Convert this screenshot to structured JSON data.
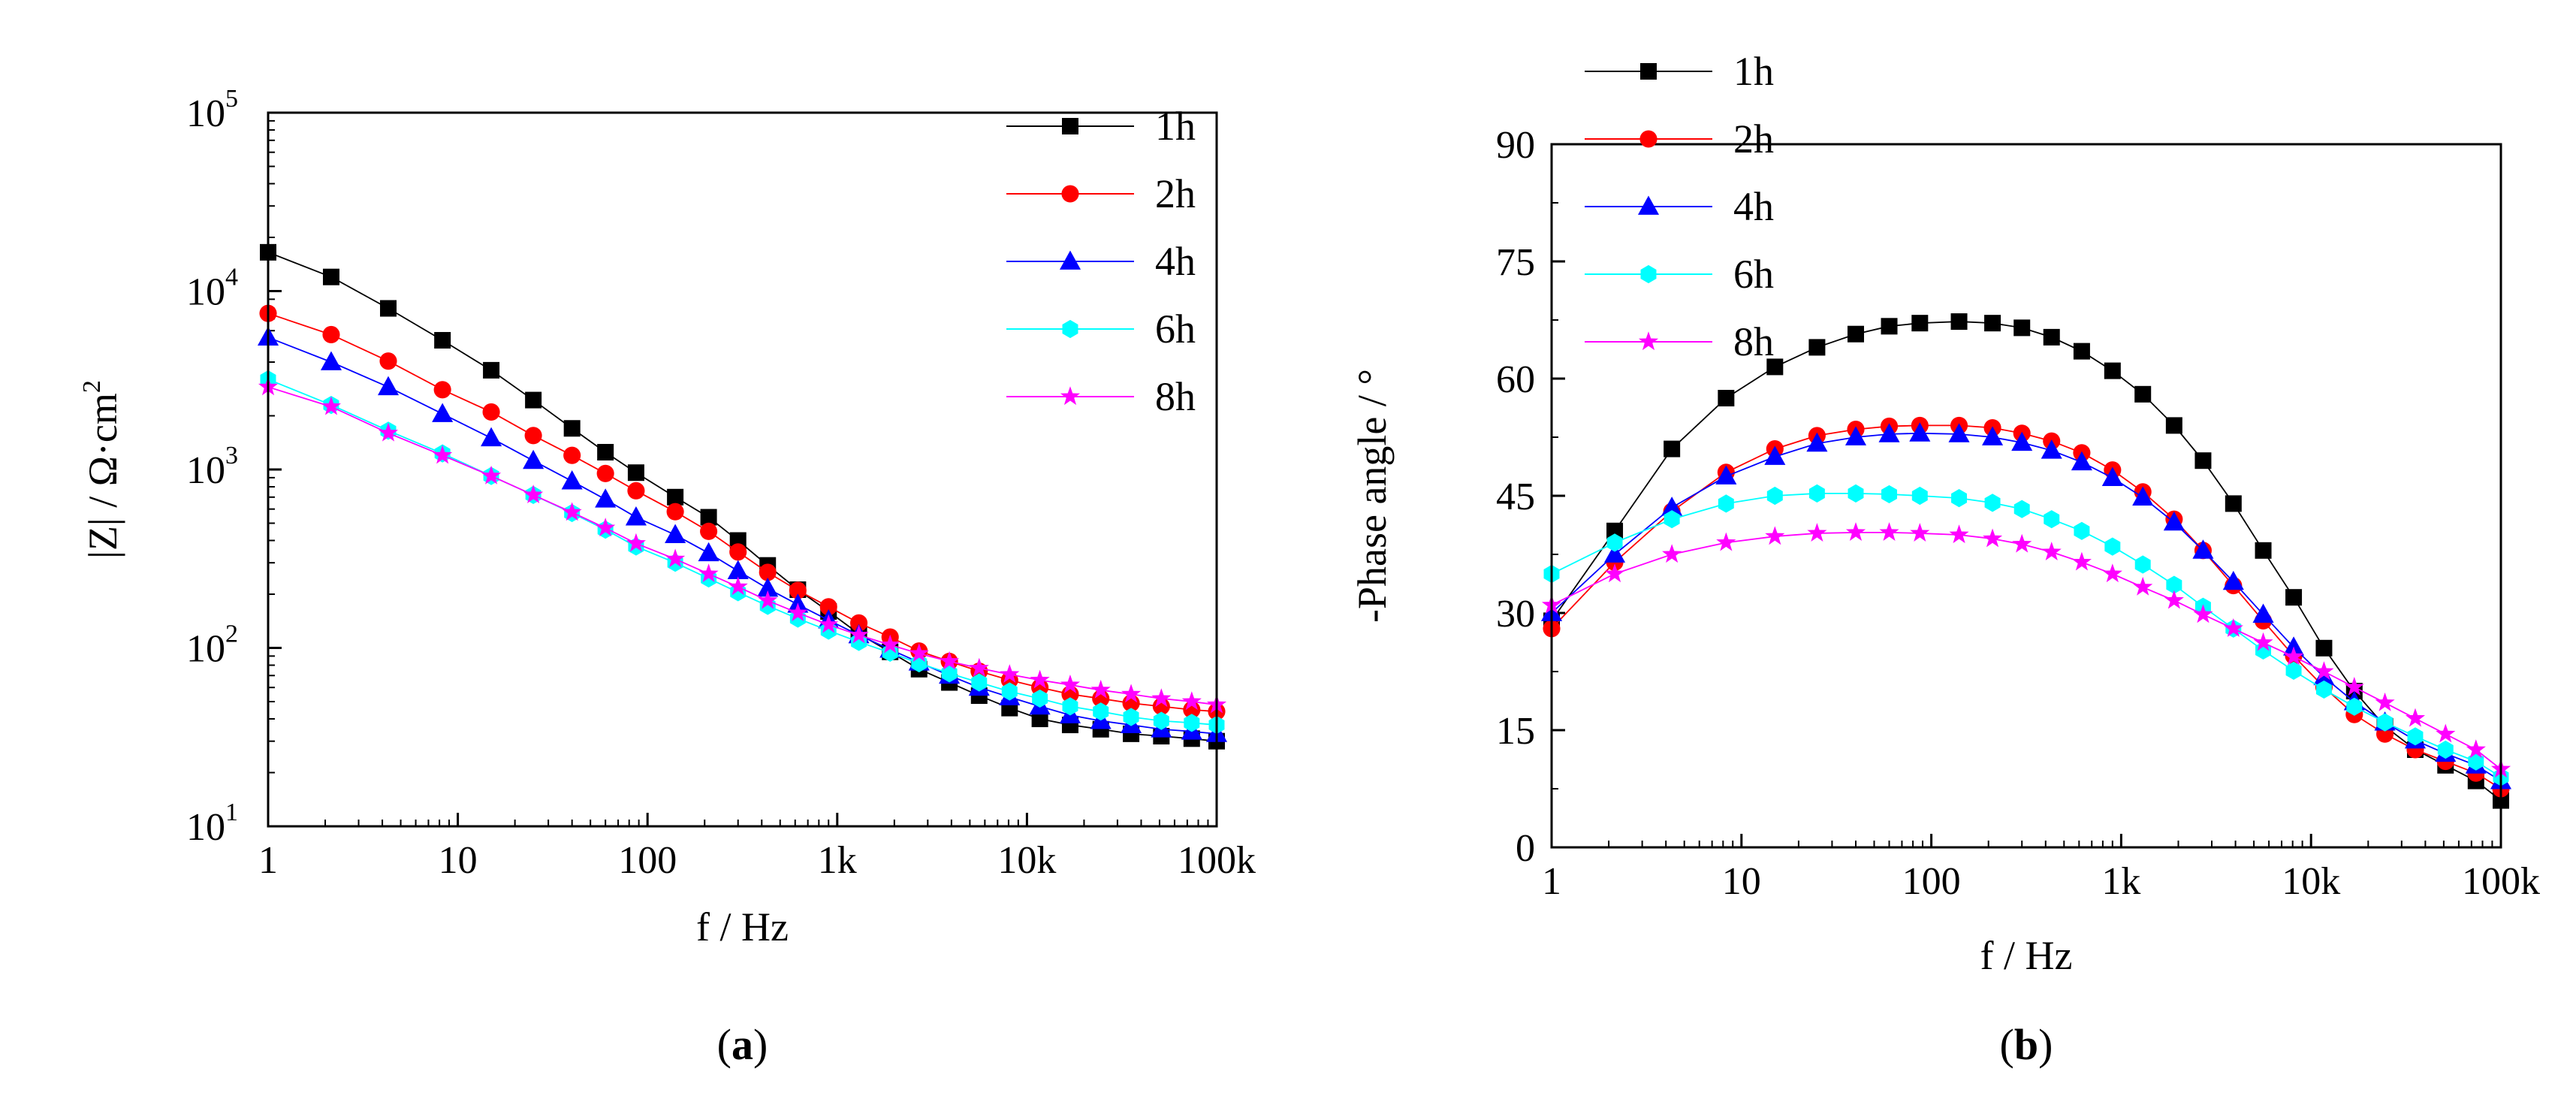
{
  "chart_data": [
    {
      "type": "line",
      "panel_label": "a",
      "title": "",
      "xlabel": "f / Hz",
      "ylabel": "|Z| / Ω·cm",
      "ylabel_sup": "2",
      "xscale": "log",
      "yscale": "log",
      "xlim": [
        1,
        100000
      ],
      "ylim": [
        10,
        100000
      ],
      "x_ticks": [
        {
          "v": 1,
          "label": "1"
        },
        {
          "v": 10,
          "label": "10"
        },
        {
          "v": 100,
          "label": "100"
        },
        {
          "v": 1000,
          "label": "1k"
        },
        {
          "v": 10000,
          "label": "10k"
        },
        {
          "v": 100000,
          "label": "100k"
        }
      ],
      "y_ticks": [
        {
          "v": 10,
          "base": "10",
          "exp": "1"
        },
        {
          "v": 100,
          "base": "10",
          "exp": "2"
        },
        {
          "v": 1000,
          "base": "10",
          "exp": "3"
        },
        {
          "v": 10000,
          "base": "10",
          "exp": "4"
        },
        {
          "v": 100000,
          "base": "10",
          "exp": "5"
        }
      ],
      "legend_position": "top-right",
      "x": [
        1,
        2.15,
        4.3,
        8.3,
        15,
        25,
        40,
        60,
        87,
        140,
        210,
        300,
        430,
        620,
        900,
        1300,
        1900,
        2700,
        3900,
        5600,
        8100,
        11700,
        16900,
        24500,
        35400,
        51100,
        73900,
        100000
      ],
      "series": [
        {
          "name": "1h",
          "color": "#000000",
          "marker": "square",
          "values": [
            16500,
            12000,
            8000,
            5300,
            3600,
            2450,
            1700,
            1250,
            960,
            700,
            540,
            400,
            290,
            212,
            160,
            120,
            95,
            76,
            64,
            54,
            46,
            40,
            37,
            35,
            33,
            32,
            31,
            30
          ]
        },
        {
          "name": "2h",
          "color": "#ff0000",
          "marker": "circle",
          "values": [
            7500,
            5700,
            4050,
            2800,
            2100,
            1550,
            1200,
            950,
            760,
            580,
            450,
            345,
            265,
            210,
            170,
            138,
            115,
            96,
            84,
            74,
            66,
            60,
            55,
            52,
            49,
            47,
            45,
            44
          ]
        },
        {
          "name": "4h",
          "color": "#0000ff",
          "marker": "triangle",
          "values": [
            5500,
            4000,
            2900,
            2050,
            1500,
            1120,
            860,
            680,
            540,
            430,
            340,
            270,
            215,
            175,
            143,
            118,
            98,
            83,
            70,
            60,
            53,
            47,
            42,
            39,
            37,
            35,
            34,
            33
          ]
        },
        {
          "name": "6h",
          "color": "#00ffff",
          "marker": "hexagon",
          "values": [
            3200,
            2300,
            1650,
            1230,
            920,
            720,
            570,
            460,
            370,
            300,
            245,
            205,
            172,
            146,
            125,
            108,
            94,
            82,
            72,
            64,
            57,
            52,
            47,
            44,
            41,
            39,
            38,
            37
          ]
        },
        {
          "name": "8h",
          "color": "#ff00ff",
          "marker": "star",
          "values": [
            2900,
            2250,
            1600,
            1200,
            920,
            720,
            575,
            470,
            385,
            315,
            260,
            220,
            184,
            157,
            135,
            118,
            104,
            93,
            84,
            77,
            71,
            66,
            62,
            58,
            55,
            52,
            50,
            48
          ]
        }
      ]
    },
    {
      "type": "line",
      "panel_label": "b",
      "title": "",
      "xlabel": "f / Hz",
      "ylabel": "-Phase angle / °",
      "xscale": "log",
      "yscale": "linear",
      "xlim": [
        1,
        100000
      ],
      "ylim": [
        0,
        90
      ],
      "x_ticks": [
        {
          "v": 1,
          "label": "1"
        },
        {
          "v": 10,
          "label": "10"
        },
        {
          "v": 100,
          "label": "100"
        },
        {
          "v": 1000,
          "label": "1k"
        },
        {
          "v": 10000,
          "label": "10k"
        },
        {
          "v": 100000,
          "label": "100k"
        }
      ],
      "y_ticks": [
        {
          "v": 0,
          "label": "0"
        },
        {
          "v": 15,
          "label": "15"
        },
        {
          "v": 30,
          "label": "30"
        },
        {
          "v": 45,
          "label": "45"
        },
        {
          "v": 60,
          "label": "60"
        },
        {
          "v": 75,
          "label": "75"
        },
        {
          "v": 90,
          "label": "90"
        }
      ],
      "legend_position": "top-left",
      "x": [
        1,
        2.15,
        4.3,
        8.3,
        15,
        25,
        40,
        60,
        87,
        140,
        210,
        300,
        430,
        620,
        900,
        1300,
        1900,
        2700,
        3900,
        5600,
        8100,
        11700,
        16900,
        24500,
        35400,
        51100,
        73900,
        100000
      ],
      "series": [
        {
          "name": "1h",
          "color": "#000000",
          "marker": "square",
          "values": [
            29,
            40.5,
            51,
            57.5,
            61.5,
            64,
            65.7,
            66.7,
            67.1,
            67.3,
            67.1,
            66.5,
            65.3,
            63.5,
            61,
            58,
            54,
            49.5,
            44,
            38,
            32,
            25.5,
            20,
            15.5,
            12.5,
            10.5,
            8.5,
            6
          ]
        },
        {
          "name": "2h",
          "color": "#ff0000",
          "marker": "circle",
          "values": [
            28,
            36.5,
            43,
            48,
            51,
            52.7,
            53.5,
            53.9,
            54,
            54,
            53.7,
            53,
            52,
            50.5,
            48.3,
            45.5,
            42,
            38,
            33.5,
            29,
            24.5,
            20.5,
            17,
            14.5,
            12.5,
            11,
            9.5,
            7.5
          ]
        },
        {
          "name": "4h",
          "color": "#0000ff",
          "marker": "triangle",
          "values": [
            30,
            37.5,
            43.5,
            47.5,
            50,
            51.7,
            52.5,
            52.9,
            53,
            52.9,
            52.5,
            51.8,
            50.8,
            49.3,
            47.3,
            44.8,
            41.6,
            38,
            34,
            29.8,
            25.6,
            21.8,
            18.6,
            16,
            13.7,
            12,
            10.5,
            8.5
          ]
        },
        {
          "name": "6h",
          "color": "#00ffff",
          "marker": "hexagon",
          "values": [
            35,
            39,
            42,
            44,
            45,
            45.3,
            45.3,
            45.2,
            45,
            44.7,
            44.1,
            43.3,
            42,
            40.5,
            38.5,
            36.2,
            33.6,
            30.8,
            28,
            25.2,
            22.6,
            20.2,
            18,
            16,
            14.2,
            12.5,
            11,
            9
          ]
        },
        {
          "name": "8h",
          "color": "#ff00ff",
          "marker": "star",
          "values": [
            31,
            35,
            37.5,
            39,
            39.8,
            40.2,
            40.3,
            40.3,
            40.2,
            40,
            39.5,
            38.8,
            37.8,
            36.5,
            35,
            33.3,
            31.6,
            29.8,
            28,
            26.2,
            24.4,
            22.5,
            20.5,
            18.5,
            16.5,
            14.5,
            12.5,
            10
          ]
        }
      ]
    }
  ]
}
